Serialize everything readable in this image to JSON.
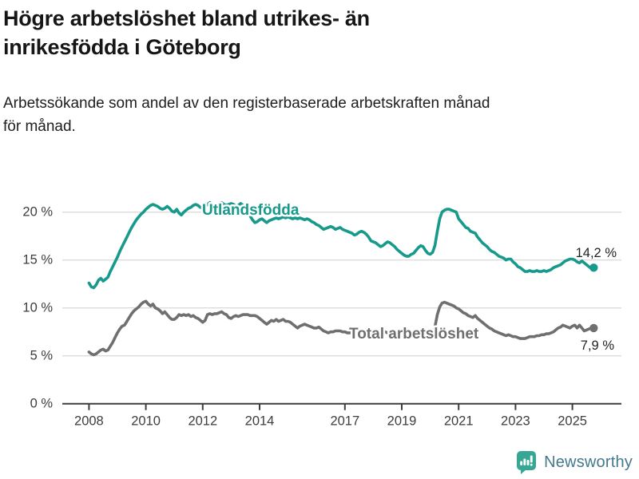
{
  "header": {
    "title_line1": "Högre arbetslöshet bland utrikes- än",
    "title_line2": "inrikesfödda i Göteborg",
    "subtitle_line1": "Arbetssökande som andel av den registerbaserade arbetskraften månad",
    "subtitle_line2": "för månad."
  },
  "footer": {
    "brand": "Newsworthy",
    "logo_icon": "bar-chart-speech-bubble-icon",
    "brand_teal": "#35a794",
    "brand_text_color": "#44798e"
  },
  "chart_data": {
    "type": "line",
    "unit": "%",
    "frequency": "monthly",
    "start": "2008-01",
    "end": "2025-10",
    "grid": "horizontal",
    "ylim": [
      0,
      22
    ],
    "y_ticks": [
      {
        "value": 0,
        "label": "0 %"
      },
      {
        "value": 5,
        "label": "5 %"
      },
      {
        "value": 10,
        "label": "10 %"
      },
      {
        "value": 15,
        "label": "15 %"
      },
      {
        "value": 20,
        "label": "20 %"
      }
    ],
    "x_ticks": [
      {
        "year": 2008,
        "label": "2008"
      },
      {
        "year": 2010,
        "label": "2010"
      },
      {
        "year": 2012,
        "label": "2012"
      },
      {
        "year": 2014,
        "label": "2014"
      },
      {
        "year": 2017,
        "label": "2017"
      },
      {
        "year": 2019,
        "label": "2019"
      },
      {
        "year": 2021,
        "label": "2021"
      },
      {
        "year": 2023,
        "label": "2023"
      },
      {
        "year": 2025,
        "label": "2025"
      }
    ],
    "series": [
      {
        "name": "Utlandsfödda",
        "color": "#179a8b",
        "end_value_label": "14,2 %",
        "values": [
          12.6,
          12.2,
          12.1,
          12.4,
          12.9,
          13.1,
          12.8,
          13.0,
          13.2,
          13.8,
          14.3,
          14.8,
          15.3,
          15.9,
          16.4,
          16.9,
          17.4,
          17.9,
          18.4,
          18.8,
          19.2,
          19.5,
          19.8,
          20.0,
          20.3,
          20.5,
          20.7,
          20.8,
          20.7,
          20.6,
          20.4,
          20.3,
          20.4,
          20.6,
          20.4,
          20.1,
          20.0,
          20.3,
          19.9,
          19.7,
          20.0,
          20.2,
          20.4,
          20.5,
          20.7,
          20.8,
          20.7,
          20.5,
          20.4,
          20.6,
          20.8,
          21.0,
          20.8,
          20.6,
          20.7,
          20.9,
          21.0,
          20.8,
          20.7,
          20.8,
          20.9,
          20.8,
          20.6,
          20.7,
          20.9,
          20.7,
          20.4,
          20.0,
          19.6,
          19.2,
          18.9,
          19.0,
          19.2,
          19.3,
          19.1,
          18.9,
          19.1,
          19.2,
          19.3,
          19.4,
          19.3,
          19.4,
          19.5,
          19.4,
          19.5,
          19.4,
          19.3,
          19.4,
          19.3,
          19.4,
          19.3,
          19.2,
          19.3,
          19.2,
          19.0,
          18.9,
          18.7,
          18.6,
          18.4,
          18.2,
          18.3,
          18.4,
          18.5,
          18.4,
          18.2,
          18.3,
          18.4,
          18.2,
          18.1,
          18.0,
          17.9,
          17.8,
          17.6,
          17.7,
          17.9,
          18.0,
          17.9,
          17.7,
          17.4,
          17.0,
          16.9,
          16.8,
          16.6,
          16.4,
          16.5,
          16.7,
          16.9,
          16.8,
          16.6,
          16.4,
          16.1,
          15.9,
          15.7,
          15.5,
          15.4,
          15.4,
          15.6,
          15.7,
          16.0,
          16.3,
          16.5,
          16.4,
          16.0,
          15.7,
          15.6,
          15.8,
          16.5,
          18.0,
          19.3,
          20.0,
          20.2,
          20.3,
          20.3,
          20.2,
          20.1,
          20.0,
          19.3,
          19.0,
          18.7,
          18.4,
          18.3,
          18.0,
          17.9,
          17.8,
          17.4,
          17.1,
          16.8,
          16.6,
          16.4,
          16.1,
          15.9,
          15.8,
          15.6,
          15.4,
          15.3,
          15.2,
          15.0,
          15.1,
          15.1,
          14.8,
          14.6,
          14.3,
          14.2,
          14.0,
          13.8,
          13.8,
          13.9,
          13.8,
          13.8,
          13.9,
          13.8,
          13.8,
          13.9,
          13.8,
          13.9,
          14.0,
          14.2,
          14.3,
          14.4,
          14.5,
          14.7,
          14.9,
          15.0,
          15.1,
          15.1,
          15.0,
          14.8,
          14.7,
          14.9,
          14.7,
          14.5,
          14.3,
          14.1,
          14.2
        ]
      },
      {
        "name": "Total arbetslöshet",
        "color": "#6f6f6f",
        "end_value_label": "7,9 %",
        "values": [
          5.4,
          5.2,
          5.1,
          5.2,
          5.4,
          5.6,
          5.7,
          5.5,
          5.6,
          6.0,
          6.4,
          6.9,
          7.4,
          7.8,
          8.1,
          8.2,
          8.6,
          9.0,
          9.4,
          9.7,
          9.9,
          10.1,
          10.4,
          10.6,
          10.7,
          10.4,
          10.2,
          10.4,
          10.0,
          9.9,
          9.7,
          9.4,
          9.6,
          9.3,
          9.0,
          8.8,
          8.8,
          9.0,
          9.3,
          9.2,
          9.3,
          9.2,
          9.3,
          9.1,
          9.2,
          9.0,
          8.9,
          8.7,
          8.5,
          8.7,
          9.3,
          9.4,
          9.3,
          9.4,
          9.4,
          9.5,
          9.6,
          9.4,
          9.3,
          9.0,
          8.9,
          9.1,
          9.2,
          9.1,
          9.2,
          9.3,
          9.3,
          9.3,
          9.2,
          9.2,
          9.2,
          9.1,
          8.9,
          8.7,
          8.5,
          8.3,
          8.5,
          8.7,
          8.6,
          8.8,
          8.6,
          8.7,
          8.8,
          8.6,
          8.6,
          8.5,
          8.3,
          8.1,
          7.9,
          8.1,
          8.2,
          8.3,
          8.2,
          8.1,
          8.0,
          7.9,
          7.9,
          8.0,
          7.8,
          7.6,
          7.5,
          7.4,
          7.5,
          7.5,
          7.6,
          7.6,
          7.6,
          7.5,
          7.5,
          7.4,
          7.4,
          7.5,
          7.6,
          7.6,
          7.7,
          7.6,
          7.6,
          7.5,
          7.5,
          7.4,
          7.4,
          7.3,
          7.3,
          7.4,
          7.4,
          7.5,
          7.4,
          7.4,
          7.3,
          7.3,
          7.2,
          7.2,
          7.2,
          7.1,
          7.2,
          7.2,
          7.3,
          7.3,
          7.4,
          7.3,
          7.3,
          7.2,
          7.2,
          7.3,
          7.3,
          7.4,
          8.0,
          9.3,
          10.1,
          10.5,
          10.6,
          10.5,
          10.4,
          10.3,
          10.2,
          10.0,
          9.9,
          9.7,
          9.5,
          9.4,
          9.2,
          9.1,
          9.0,
          9.2,
          8.9,
          8.7,
          8.5,
          8.3,
          8.1,
          7.9,
          7.8,
          7.6,
          7.5,
          7.4,
          7.3,
          7.2,
          7.1,
          7.2,
          7.1,
          7.0,
          7.0,
          6.9,
          6.8,
          6.8,
          6.8,
          6.9,
          7.0,
          7.0,
          7.0,
          7.1,
          7.1,
          7.2,
          7.2,
          7.3,
          7.3,
          7.4,
          7.5,
          7.7,
          7.9,
          8.0,
          8.2,
          8.1,
          8.0,
          7.9,
          8.1,
          8.2,
          7.9,
          8.2,
          7.9,
          7.6,
          7.7,
          7.8,
          7.9,
          7.9
        ]
      }
    ]
  }
}
